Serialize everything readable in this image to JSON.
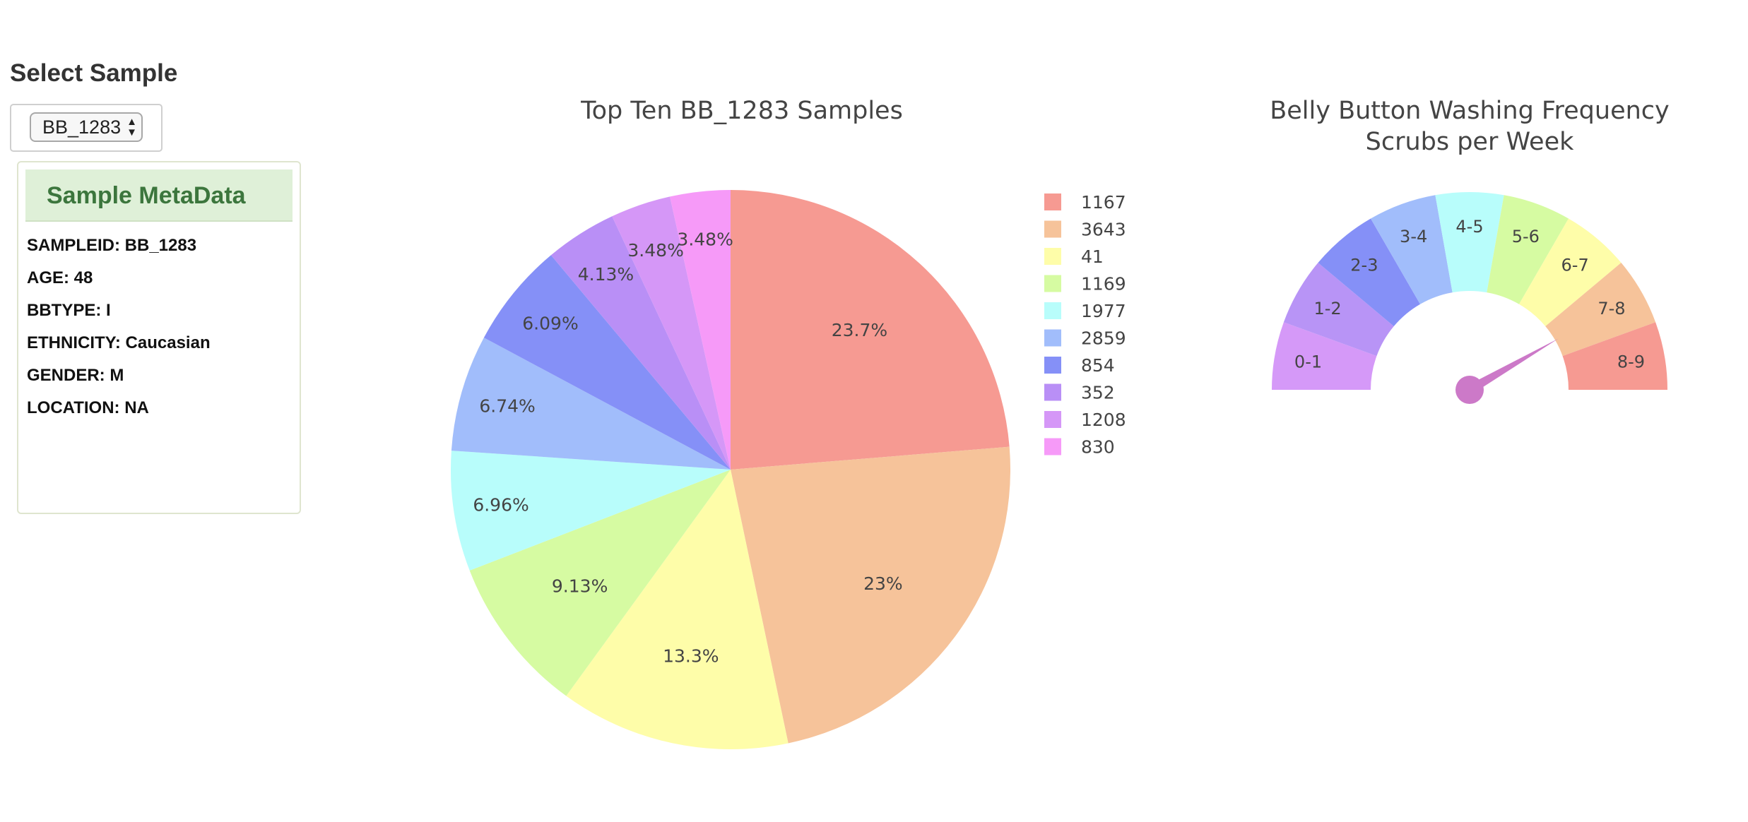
{
  "select": {
    "title": "Select Sample",
    "selected": "BB_1283"
  },
  "metadata": {
    "title": "Sample MetaData",
    "lines": [
      "SAMPLEID: BB_1283",
      "AGE: 48",
      "BBTYPE: I",
      "ETHNICITY: Caucasian",
      "GENDER: M",
      "LOCATION: NA"
    ]
  },
  "icons": {
    "select_arrows": "up-down-arrows-icon"
  },
  "chart_data": [
    {
      "type": "pie",
      "title": "Top Ten BB_1283 Samples",
      "legend_position": "right",
      "categories": [
        "1167",
        "3643",
        "41",
        "1169",
        "1977",
        "2859",
        "854",
        "352",
        "1208",
        "830"
      ],
      "values": [
        23.7,
        23,
        13.3,
        9.13,
        6.96,
        6.74,
        6.09,
        4.13,
        3.48,
        3.48
      ],
      "labels": [
        "23.7%",
        "23%",
        "13.3%",
        "9.13%",
        "6.96%",
        "6.74%",
        "6.09%",
        "4.13%",
        "3.48%",
        "3.48%"
      ],
      "colors": [
        "#f69a92",
        "#f6c39a",
        "#fefda9",
        "#d6fba2",
        "#b8fdfb",
        "#a1bdfb",
        "#8590f7",
        "#b98ff6",
        "#d597f7",
        "#f69af8"
      ]
    },
    {
      "type": "gauge",
      "title": "Belly Button Washing Frequency",
      "subtitle": "Scrubs per Week",
      "sectors": [
        "0-1",
        "1-2",
        "2-3",
        "3-4",
        "4-5",
        "5-6",
        "6-7",
        "7-8",
        "8-9"
      ],
      "colors": [
        "#d599f8",
        "#b894f6",
        "#8590f7",
        "#a1bdfb",
        "#b8fdfb",
        "#d6fba2",
        "#fefda9",
        "#f6c39a",
        "#f69a92"
      ],
      "range": [
        0,
        9
      ],
      "value": 7.5,
      "needle_color": "#cc79c8"
    }
  ]
}
